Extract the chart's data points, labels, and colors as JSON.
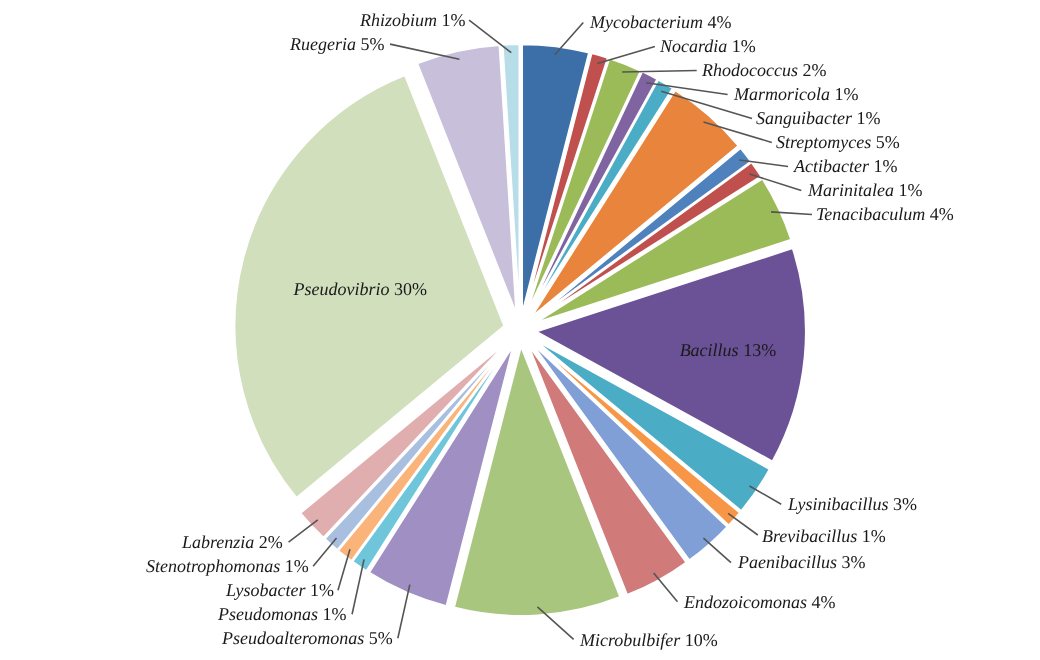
{
  "chart_data": {
    "type": "pie",
    "categories": [
      "Mycobacterium",
      "Nocardia",
      "Rhodococcus",
      "Marmoricola",
      "Sanguibacter",
      "Streptomyces",
      "Actibacter",
      "Marinitalea",
      "Tenacibaculum",
      "Bacillus",
      "Lysinibacillus",
      "Brevibacillus",
      "Paenibacillus",
      "Endozoicomonas",
      "Microbulbifer",
      "Pseudoalteromonas",
      "Pseudomonas",
      "Lysobacter",
      "Stenotrophomonas",
      "Labrenzia",
      "Pseudovibrio",
      "Ruegeria",
      "Rhizobium"
    ],
    "values": [
      4,
      1,
      2,
      1,
      1,
      5,
      1,
      1,
      4,
      13,
      3,
      1,
      3,
      4,
      10,
      5,
      1,
      1,
      1,
      2,
      30,
      5,
      1
    ],
    "value_labels": [
      "4%",
      "1%",
      "2%",
      "1%",
      "1%",
      "5%",
      "1%",
      "1%",
      "4%",
      "13%",
      "3%",
      "1%",
      "3%",
      "4%",
      "10%",
      "5%",
      "1%",
      "1%",
      "1%",
      "2%",
      "30%",
      "5%",
      "1%"
    ],
    "colors": [
      "#3c6ea8",
      "#c0504d",
      "#9bbb59",
      "#8064a2",
      "#4bacc6",
      "#e8843c",
      "#4f81bd",
      "#c0504d",
      "#9bbb59",
      "#6b5296",
      "#4bacc6",
      "#f79646",
      "#7f9fd6",
      "#d07a7a",
      "#a9c67f",
      "#a08fc2",
      "#6fc6da",
      "#fab47a",
      "#a8bfe0",
      "#e0aeae",
      "#d1dfbc",
      "#c8bfdb",
      "#b7dde8"
    ],
    "legend": false
  }
}
